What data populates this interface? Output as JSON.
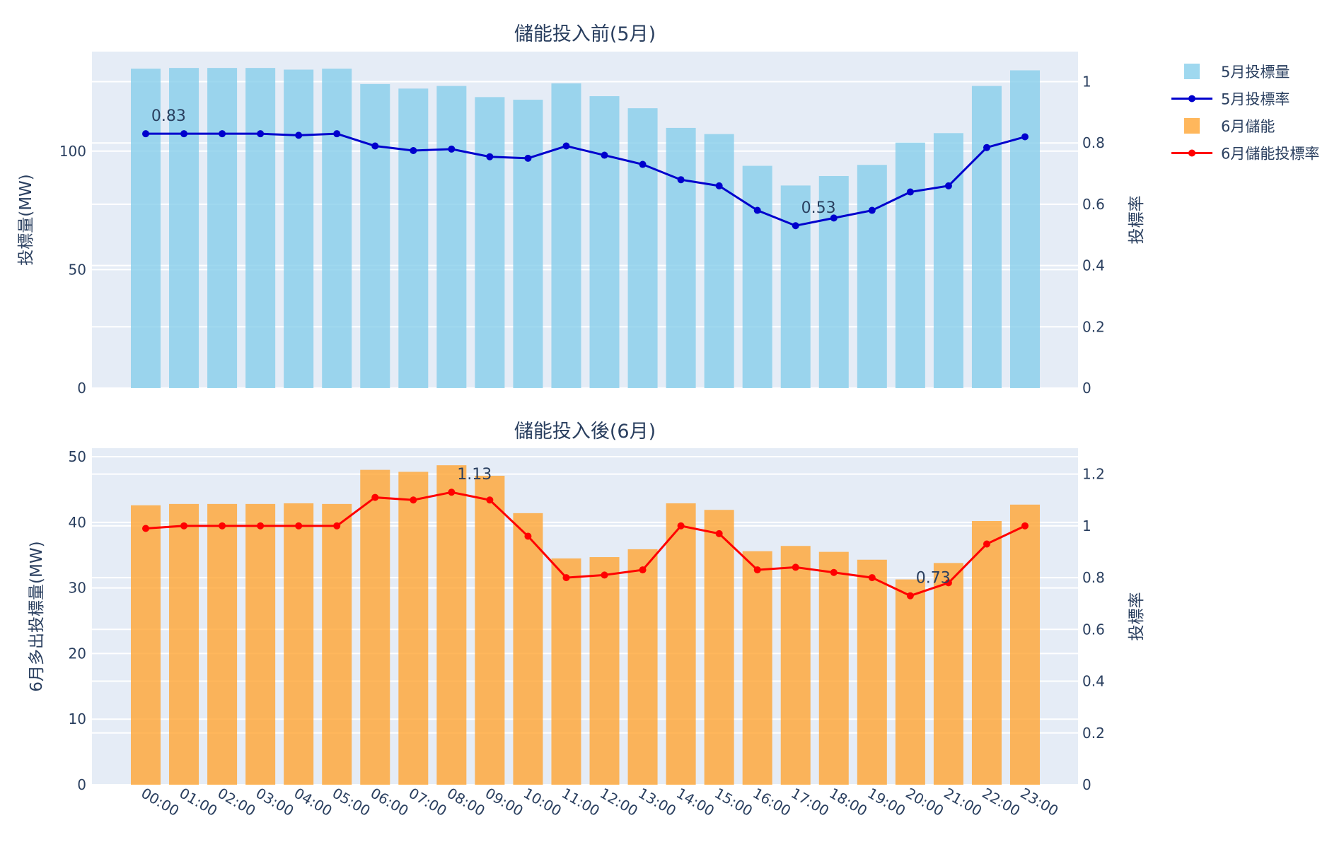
{
  "chart_data": [
    {
      "type": "bar+line",
      "title": "儲能投入前(5月)",
      "categories": [
        "00:00",
        "01:00",
        "02:00",
        "03:00",
        "04:00",
        "05:00",
        "06:00",
        "07:00",
        "08:00",
        "09:00",
        "10:00",
        "11:00",
        "12:00",
        "13:00",
        "14:00",
        "15:00",
        "16:00",
        "17:00",
        "18:00",
        "19:00",
        "20:00",
        "21:00",
        "22:00",
        "23:00"
      ],
      "ylabel": "投標量(MW)",
      "y2label": "投標率",
      "ylim": [
        0,
        142
      ],
      "y2lim": [
        0,
        1.098
      ],
      "yticks": [
        0,
        50,
        100
      ],
      "y2ticks": [
        0,
        0.2,
        0.4,
        0.6,
        0.8,
        1
      ],
      "grid": true,
      "series": [
        {
          "name": "5月投標量",
          "type": "bar",
          "axis": "y",
          "color": "#87ceeb",
          "values": [
            134.8,
            135.1,
            135.1,
            135.1,
            134.4,
            134.8,
            128.3,
            126.4,
            127.5,
            122.8,
            121.7,
            128.6,
            123.2,
            118.1,
            109.8,
            107.2,
            93.8,
            85.5,
            89.5,
            94.2,
            103.6,
            107.6,
            127.5,
            134.1
          ]
        },
        {
          "name": "5月投標率",
          "type": "line",
          "axis": "y2",
          "color": "#0000cd",
          "values": [
            0.83,
            0.83,
            0.83,
            0.83,
            0.825,
            0.83,
            0.79,
            0.775,
            0.78,
            0.755,
            0.75,
            0.79,
            0.76,
            0.73,
            0.68,
            0.66,
            0.58,
            0.53,
            0.555,
            0.58,
            0.64,
            0.66,
            0.785,
            0.82
          ]
        }
      ],
      "annotations": [
        {
          "text": "0.83",
          "x": "01:00"
        },
        {
          "text": "0.53",
          "x": "18:00"
        }
      ]
    },
    {
      "type": "bar+line",
      "title": "儲能投入後(6月)",
      "categories": [
        "00:00",
        "01:00",
        "02:00",
        "03:00",
        "04:00",
        "05:00",
        "06:00",
        "07:00",
        "08:00",
        "09:00",
        "10:00",
        "11:00",
        "12:00",
        "13:00",
        "14:00",
        "15:00",
        "16:00",
        "17:00",
        "18:00",
        "19:00",
        "20:00",
        "21:00",
        "22:00",
        "23:00"
      ],
      "ylabel": "6月多出投標量(MW)",
      "y2label": "投標率",
      "ylim": [
        0,
        51.3
      ],
      "y2lim": [
        0,
        1.3
      ],
      "yticks": [
        0,
        10,
        20,
        30,
        40,
        50
      ],
      "y2ticks": [
        0,
        0.2,
        0.4,
        0.6,
        0.8,
        1,
        1.2
      ],
      "grid": true,
      "series": [
        {
          "name": "6月儲能",
          "type": "bar",
          "axis": "y",
          "color": "#ffa533",
          "values": [
            42.6,
            42.8,
            42.8,
            42.8,
            42.9,
            42.8,
            48.0,
            47.7,
            48.7,
            47.1,
            41.4,
            34.5,
            34.7,
            35.9,
            42.9,
            41.9,
            35.6,
            36.4,
            35.5,
            34.3,
            31.3,
            33.8,
            40.2,
            42.7
          ]
        },
        {
          "name": "6月儲能投標率",
          "type": "line",
          "axis": "y2",
          "color": "#ff0000",
          "values": [
            0.99,
            1,
            1,
            1,
            1,
            1,
            1.11,
            1.1,
            1.13,
            1.1,
            0.96,
            0.8,
            0.81,
            0.83,
            1.0,
            0.97,
            0.83,
            0.84,
            0.82,
            0.8,
            0.73,
            0.78,
            0.93,
            1.0
          ]
        }
      ],
      "annotations": [
        {
          "text": "1.13",
          "x": "09:00"
        },
        {
          "text": "0.73",
          "x": "21:00"
        }
      ]
    }
  ],
  "legend": {
    "placement": "right",
    "items": [
      {
        "label": "5月投標量",
        "kind": "bar",
        "color": "#87ceeb"
      },
      {
        "label": "5月投標率",
        "kind": "line",
        "color": "#0000cd"
      },
      {
        "label": "6月儲能",
        "kind": "bar",
        "color": "#ffa533"
      },
      {
        "label": "6月儲能投標率",
        "kind": "line",
        "color": "#ff0000"
      }
    ]
  }
}
